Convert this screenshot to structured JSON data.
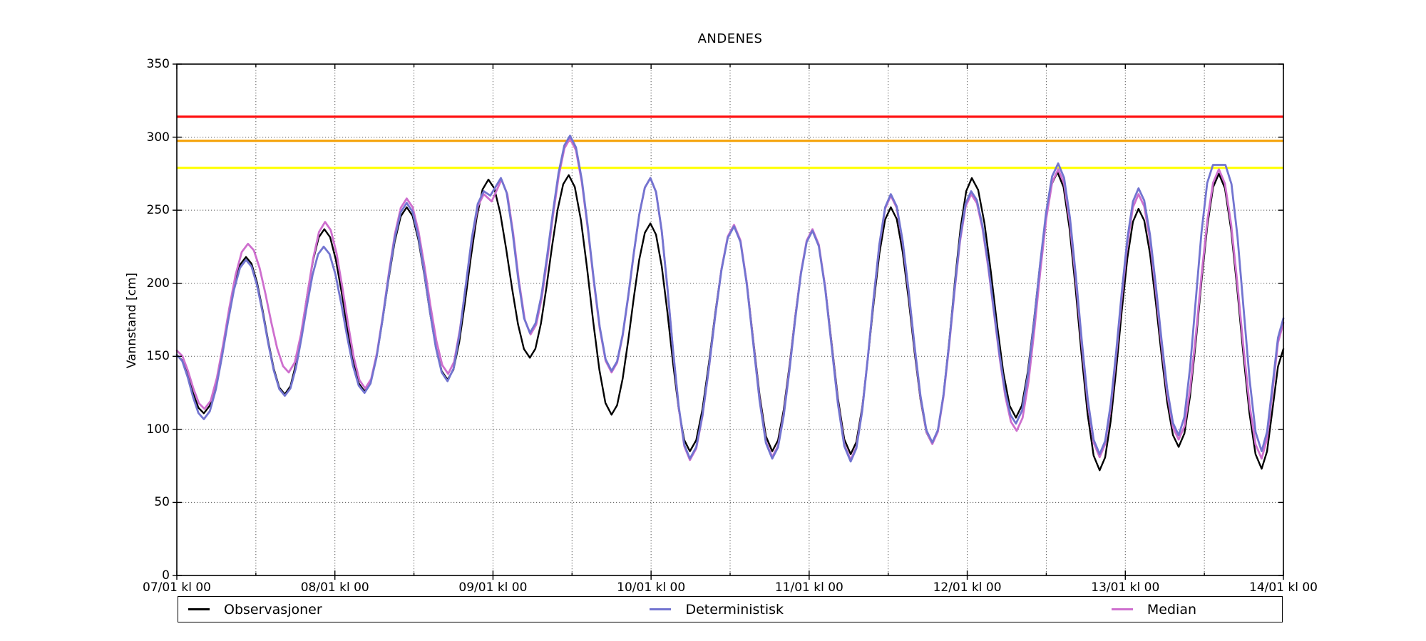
{
  "chart_data": {
    "type": "line",
    "title": "ANDENES",
    "ylabel": "Vannstand [cm]",
    "x_axis": {
      "range_hours": [
        0,
        168
      ],
      "major_tick_step_hours": 24,
      "minor_grid_step_hours": 12,
      "tick_labels": [
        "07/01 kl 00",
        "08/01 kl 00",
        "09/01 kl 00",
        "10/01 kl 00",
        "11/01 kl 00",
        "12/01 kl 00",
        "13/01 kl 00",
        "14/01 kl 00"
      ]
    },
    "y_axis": {
      "range": [
        0,
        350
      ],
      "tick_step": 50,
      "tick_labels": [
        "0",
        "50",
        "100",
        "150",
        "200",
        "250",
        "300",
        "350"
      ]
    },
    "grid": {
      "visible": true,
      "style": "dotted",
      "color": "#555555"
    },
    "warning_lines": [
      {
        "name": "red-threshold",
        "color": "#ff0f0f",
        "value": 314
      },
      {
        "name": "orange-threshold",
        "color": "#f5a309",
        "value": 297.5
      },
      {
        "name": "yellow-threshold",
        "color": "#ffff0a",
        "value": 279
      }
    ],
    "series": [
      {
        "name": "Observasjoner",
        "color": "#000000",
        "width": 2.4,
        "points": [
          [
            0,
            151
          ],
          [
            4.1,
            111
          ],
          [
            10.5,
            218
          ],
          [
            16.4,
            124
          ],
          [
            22.4,
            237
          ],
          [
            28.5,
            126
          ],
          [
            34.9,
            252
          ],
          [
            41.1,
            134
          ],
          [
            47.3,
            271
          ],
          [
            53.6,
            149
          ],
          [
            59.5,
            274
          ],
          [
            66,
            110
          ],
          [
            71.9,
            241
          ],
          [
            77.9,
            85
          ],
          [
            84.6,
            239
          ],
          [
            90.4,
            85
          ],
          [
            96.5,
            236
          ],
          [
            102.3,
            83
          ],
          [
            108.4,
            252
          ],
          [
            114.7,
            90
          ],
          [
            120.7,
            272
          ],
          [
            127.4,
            108
          ],
          [
            133.7,
            276
          ],
          [
            140.1,
            72
          ],
          [
            146,
            251
          ],
          [
            152.1,
            88
          ],
          [
            158.2,
            275
          ],
          [
            164.7,
            73
          ],
          [
            168,
            155
          ]
        ]
      },
      {
        "name": "Median",
        "color": "#ce6fce",
        "width": 2.8,
        "points": [
          [
            0,
            154
          ],
          [
            4.2,
            114
          ],
          [
            10.8,
            227
          ],
          [
            17,
            139
          ],
          [
            22.5,
            242
          ],
          [
            28.6,
            128
          ],
          [
            34.9,
            258
          ],
          [
            41.2,
            138
          ],
          [
            46.6,
            261
          ],
          [
            47.8,
            256
          ],
          [
            49.3,
            271
          ],
          [
            53.7,
            165
          ],
          [
            59.7,
            299
          ],
          [
            66,
            139
          ],
          [
            71.9,
            272
          ],
          [
            77.9,
            79
          ],
          [
            84.6,
            240
          ],
          [
            90.4,
            81
          ],
          [
            96.5,
            237
          ],
          [
            102.3,
            79
          ],
          [
            108.4,
            260
          ],
          [
            114.7,
            90
          ],
          [
            120.6,
            261
          ],
          [
            127.5,
            99
          ],
          [
            133.8,
            278
          ],
          [
            140.1,
            81
          ],
          [
            146,
            261
          ],
          [
            152.1,
            93
          ],
          [
            158.2,
            278
          ],
          [
            164.7,
            80
          ],
          [
            168,
            173
          ]
        ]
      },
      {
        "name": "Deterministisk",
        "color": "#7274d0",
        "width": 2.8,
        "points": [
          [
            0,
            151
          ],
          [
            4.1,
            107
          ],
          [
            10.5,
            216
          ],
          [
            16.4,
            123
          ],
          [
            22.3,
            225
          ],
          [
            28.5,
            125
          ],
          [
            34.9,
            255
          ],
          [
            41.1,
            133
          ],
          [
            46.6,
            263
          ],
          [
            47.6,
            260
          ],
          [
            49.2,
            272
          ],
          [
            53.6,
            166
          ],
          [
            59.7,
            301
          ],
          [
            66,
            140
          ],
          [
            71.9,
            272
          ],
          [
            77.9,
            80
          ],
          [
            84.6,
            239
          ],
          [
            90.4,
            80
          ],
          [
            96.5,
            236
          ],
          [
            102.3,
            78
          ],
          [
            108.4,
            261
          ],
          [
            114.7,
            91
          ],
          [
            120.6,
            263
          ],
          [
            127.4,
            104
          ],
          [
            133.8,
            282
          ],
          [
            140.1,
            83
          ],
          [
            146,
            265
          ],
          [
            152.1,
            96
          ],
          [
            157.3,
            281
          ],
          [
            159.2,
            281
          ],
          [
            164.7,
            85
          ],
          [
            168,
            176
          ]
        ]
      }
    ],
    "legend": {
      "order": [
        "Observasjoner",
        "Deterministisk",
        "Median"
      ],
      "position": "bottom"
    }
  },
  "layout_text": {
    "title": "ANDENES",
    "ylabel": "Vannstand [cm]"
  }
}
